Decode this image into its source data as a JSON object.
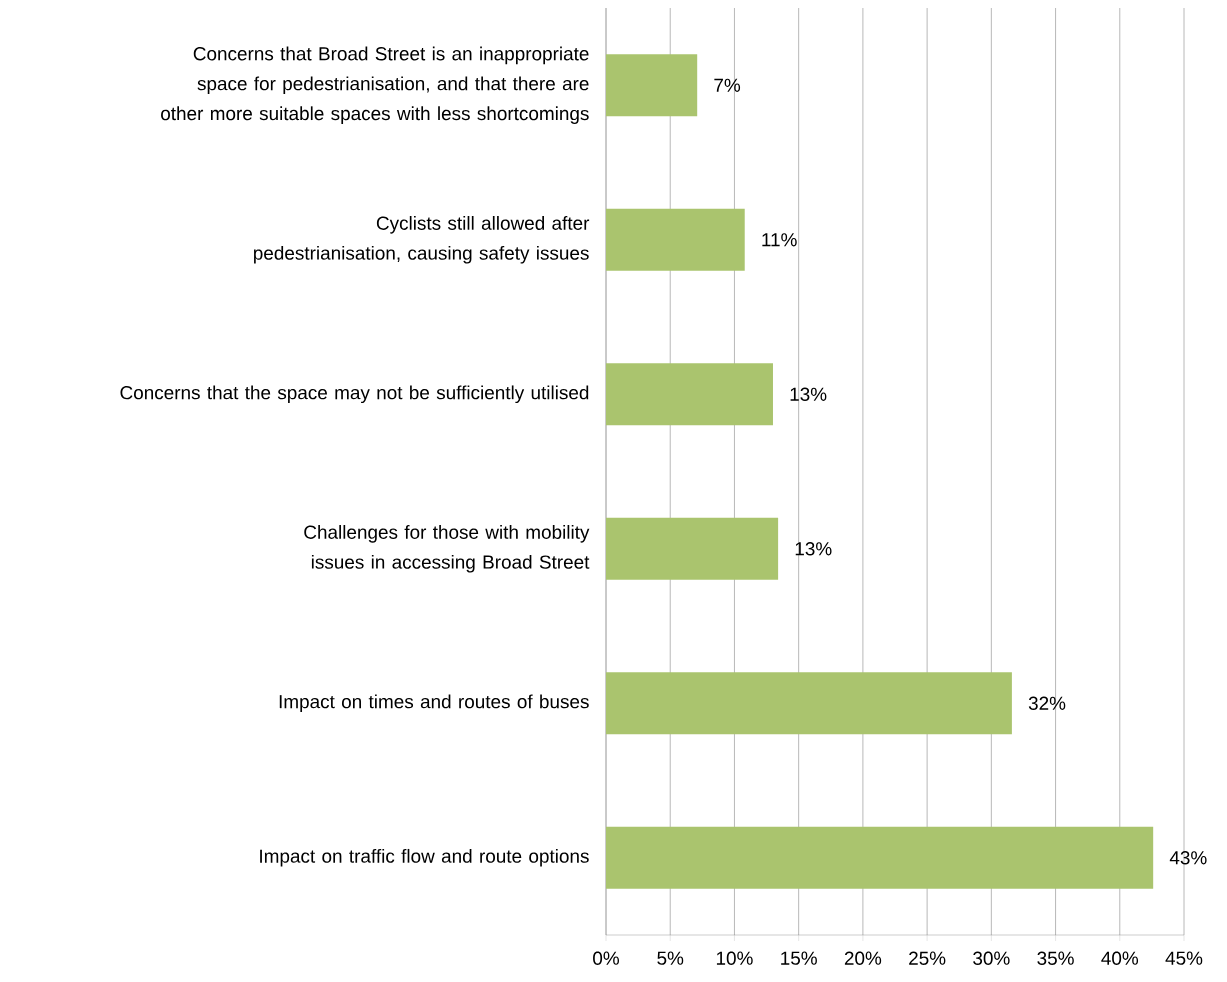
{
  "chart_data": {
    "type": "bar",
    "orientation": "horizontal",
    "categories": [
      "Concerns that Broad Street is an inappropriate space for pedestrianisation, and that there are other more suitable spaces with less shortcomings",
      "Cyclists still allowed after pedestrianisation, causing safety issues",
      "Concerns that the space may not be sufficiently utilised",
      "Challenges for those with mobility issues in accessing Broad Street",
      "Impact on times and routes of buses",
      "Impact on traffic flow and route options"
    ],
    "values": [
      7.1,
      10.8,
      13.0,
      13.4,
      31.6,
      42.6
    ],
    "value_labels": [
      "7%",
      "11%",
      "13%",
      "13%",
      "32%",
      "43%"
    ],
    "color": "#aac46e",
    "xlim": [
      0,
      45
    ],
    "xticks": [
      {
        "value": 0,
        "label": "0%"
      },
      {
        "value": 5,
        "label": "5%"
      },
      {
        "value": 10,
        "label": "10%"
      },
      {
        "value": 15,
        "label": "15%"
      },
      {
        "value": 20,
        "label": "20%"
      },
      {
        "value": 25,
        "label": "25%"
      },
      {
        "value": 30,
        "label": "30%"
      },
      {
        "value": 35,
        "label": "35%"
      },
      {
        "value": 40,
        "label": "40%"
      },
      {
        "value": 45,
        "label": "45%"
      }
    ],
    "grid": "x"
  }
}
